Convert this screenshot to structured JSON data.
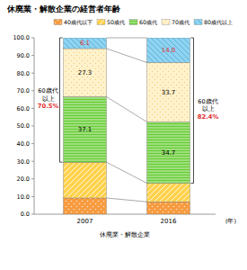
{
  "chart_data": {
    "type": "bar",
    "stacked": true,
    "title": "休廃業・解散企業の経営者年齢",
    "categories": [
      "2007",
      "2016"
    ],
    "x_label": "休廃業・解散企業",
    "x_unit": "(年)",
    "legend": "top",
    "grid": false,
    "ylim": [
      0,
      100
    ],
    "yticks": [
      {
        "value": 0,
        "label": "0.0"
      },
      {
        "value": 10,
        "label": "10.0"
      },
      {
        "value": 20,
        "label": "20.0"
      },
      {
        "value": 30,
        "label": "30.0"
      },
      {
        "value": 40,
        "label": "40.0"
      },
      {
        "value": 50,
        "label": "50.0"
      },
      {
        "value": 60,
        "label": "60.0"
      },
      {
        "value": 70,
        "label": "70.0"
      },
      {
        "value": 80,
        "label": "80.0"
      },
      {
        "value": 90,
        "label": "90.0"
      },
      {
        "value": 100,
        "label": "100.0"
      }
    ],
    "series": [
      {
        "name": "40歳代以下",
        "color": "#f79a3e",
        "values": [
          9.2,
          7.0
        ],
        "data_labels": false
      },
      {
        "name": "50歳代",
        "color": "#ffd24d",
        "values": [
          20.3,
          10.6
        ],
        "data_labels": false
      },
      {
        "name": "60歳代",
        "color": "#66cc33",
        "values": [
          37.1,
          34.7
        ],
        "data_labels": true,
        "value_labels": [
          "37.1",
          "34.7"
        ]
      },
      {
        "name": "70歳代",
        "color": "#fff2cc",
        "values": [
          27.3,
          33.7
        ],
        "data_labels": true,
        "value_labels": [
          "27.3",
          "33.7"
        ]
      },
      {
        "name": "80歳代以上",
        "color": "#8fd3f0",
        "values": [
          6.1,
          14.0
        ],
        "data_labels": true,
        "value_labels": [
          "6.1",
          "14.0"
        ]
      }
    ],
    "annotations": [
      {
        "category": 0,
        "lines": [
          "60歳代",
          "以上"
        ],
        "value": 70.5,
        "label": "70.5%"
      },
      {
        "category": 1,
        "lines": [
          "60歳代",
          "以上"
        ],
        "value": 82.4,
        "label": "82.4%"
      }
    ]
  }
}
